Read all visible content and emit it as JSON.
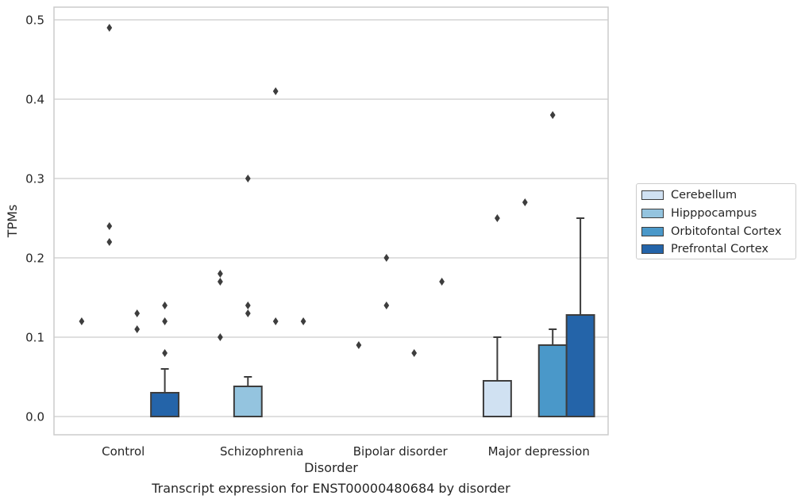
{
  "chart_data": {
    "type": "bar",
    "title": "",
    "caption": "Transcript expression for ENST00000480684 by disorder",
    "xlabel": "Disorder",
    "ylabel": "TPMs",
    "ylim": [
      -0.023,
      0.516
    ],
    "yticks": [
      "0.0",
      "0.1",
      "0.2",
      "0.3",
      "0.4",
      "0.5"
    ],
    "ytick_values": [
      0.0,
      0.1,
      0.2,
      0.3,
      0.4,
      0.5
    ],
    "categories": [
      "Control",
      "Schizophrenia",
      "Bipolar disorder",
      "Major depression"
    ],
    "grid": "horizontal",
    "legend_position": "right",
    "series": [
      {
        "name": "Cerebellum",
        "color": "#d0e1f2",
        "values": [
          0.0,
          0.0,
          0.0,
          0.045
        ],
        "upper_error": [
          0.0,
          0.0,
          0.0,
          0.1
        ],
        "outliers": [
          [
            0.12
          ],
          [
            0.1,
            0.17,
            0.18
          ],
          [
            0.09
          ],
          [
            0.25
          ]
        ]
      },
      {
        "name": "Hipppocampus",
        "color": "#94c4df",
        "values": [
          0.0,
          0.038,
          0.0,
          0.0
        ],
        "upper_error": [
          0.0,
          0.05,
          0.0,
          0.0
        ],
        "outliers": [
          [
            0.22,
            0.24,
            0.49
          ],
          [
            0.13,
            0.14,
            0.3
          ],
          [
            0.14,
            0.2
          ],
          [
            0.27
          ]
        ]
      },
      {
        "name": "Orbitofontal Cortex",
        "color": "#4a98c9",
        "values": [
          0.0,
          0.0,
          0.0,
          0.09
        ],
        "upper_error": [
          0.0,
          0.0,
          0.0,
          0.11
        ],
        "outliers": [
          [
            0.11,
            0.13
          ],
          [
            0.12,
            0.41
          ],
          [
            0.08
          ],
          [
            0.38
          ]
        ]
      },
      {
        "name": "Prefrontal Cortex",
        "color": "#2464a9",
        "values": [
          0.03,
          0.0,
          0.0,
          0.128
        ],
        "upper_error": [
          0.06,
          0.0,
          0.0,
          0.25
        ],
        "outliers": [
          [
            0.08,
            0.12,
            0.14
          ],
          [
            0.12
          ],
          [
            0.17
          ],
          []
        ]
      }
    ]
  }
}
